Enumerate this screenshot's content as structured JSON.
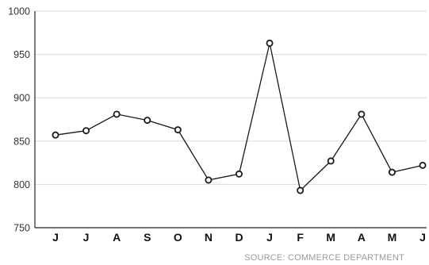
{
  "chart_data": {
    "type": "line",
    "title": "",
    "xlabel": "",
    "ylabel": "",
    "categories": [
      "J",
      "J",
      "A",
      "S",
      "O",
      "N",
      "D",
      "J",
      "F",
      "M",
      "A",
      "M",
      "J"
    ],
    "series": [
      {
        "values": [
          857,
          862,
          881,
          874,
          863,
          805,
          812,
          963,
          793,
          827,
          881,
          814,
          822
        ]
      }
    ],
    "ylim": [
      750,
      1000
    ],
    "yticks": [
      750,
      800,
      850,
      900,
      950,
      1000
    ],
    "grid": true,
    "colors": {
      "line": "#1a1a1a",
      "grid": "#d9d9d9",
      "marker_fill": "#ffffff"
    },
    "source": "SOURCE: COMMERCE DEPARTMENT"
  }
}
